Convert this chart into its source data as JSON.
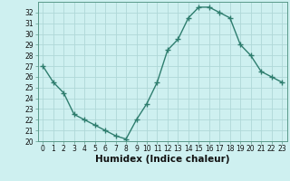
{
  "x": [
    0,
    1,
    2,
    3,
    4,
    5,
    6,
    7,
    8,
    9,
    10,
    11,
    12,
    13,
    14,
    15,
    16,
    17,
    18,
    19,
    20,
    21,
    22,
    23
  ],
  "y": [
    27,
    25.5,
    24.5,
    22.5,
    22,
    21.5,
    21,
    20.5,
    20.2,
    22,
    23.5,
    25.5,
    28.5,
    29.5,
    31.5,
    32.5,
    32.5,
    32,
    31.5,
    29,
    28,
    26.5,
    26,
    25.5
  ],
  "line_color": "#2e7d6e",
  "marker": "+",
  "marker_color": "#2e7d6e",
  "bg_color": "#cef0f0",
  "grid_color": "#afd8d8",
  "xlabel": "Humidex (Indice chaleur)",
  "xlim": [
    -0.5,
    23.5
  ],
  "ylim": [
    20,
    33
  ],
  "yticks": [
    20,
    21,
    22,
    23,
    24,
    25,
    26,
    27,
    28,
    29,
    30,
    31,
    32
  ],
  "xticks": [
    0,
    1,
    2,
    3,
    4,
    5,
    6,
    7,
    8,
    9,
    10,
    11,
    12,
    13,
    14,
    15,
    16,
    17,
    18,
    19,
    20,
    21,
    22,
    23
  ],
  "xtick_labels": [
    "0",
    "1",
    "2",
    "3",
    "4",
    "5",
    "6",
    "7",
    "8",
    "9",
    "10",
    "11",
    "12",
    "13",
    "14",
    "15",
    "16",
    "17",
    "18",
    "19",
    "20",
    "21",
    "22",
    "23"
  ],
  "tick_fontsize": 5.5,
  "xlabel_fontsize": 7.5,
  "line_width": 1.0,
  "marker_size": 4
}
